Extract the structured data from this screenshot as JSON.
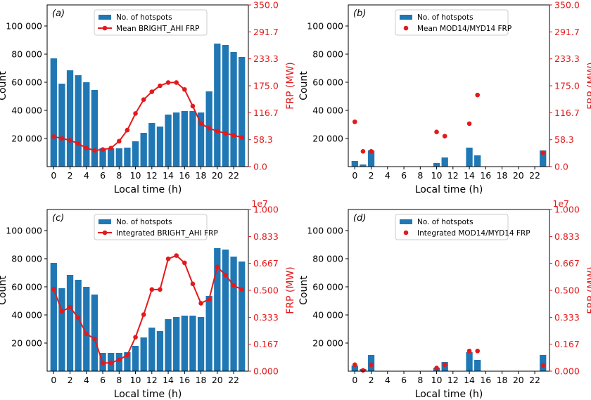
{
  "style": {
    "bar_color": "#1f77b4",
    "line_color": "#e31a1c",
    "axis_color": "#000000",
    "right_axis_color": "#e31a1c"
  },
  "chart_data": [
    {
      "id": "a",
      "panel_label": "(a)",
      "type": "bar",
      "series_types": [
        "bar",
        "line"
      ],
      "x": [
        0,
        1,
        2,
        3,
        4,
        5,
        6,
        7,
        8,
        9,
        10,
        11,
        12,
        13,
        14,
        15,
        16,
        17,
        18,
        19,
        20,
        21,
        22,
        23
      ],
      "xlabel": "Local time (h)",
      "xticks": [
        0,
        2,
        4,
        6,
        8,
        10,
        12,
        14,
        16,
        18,
        20,
        22
      ],
      "ylabel": "Count",
      "ylim": [
        0,
        115000
      ],
      "yticks": [
        20000,
        40000,
        60000,
        80000,
        100000
      ],
      "ytick_labels": [
        "20 000",
        "40 000",
        "60 000",
        "80 000",
        "100 000"
      ],
      "y2label": "FRP (MW)",
      "y2lim": [
        0,
        350
      ],
      "y2ticks": [
        0,
        58.3,
        116.7,
        175,
        233.3,
        291.7,
        350
      ],
      "y2tick_labels": [
        "0.0",
        "58.3",
        "116.7",
        "175.0",
        "233.3",
        "291.7",
        "350.0"
      ],
      "y2_offset_text": "",
      "series": [
        {
          "name": "No. of hotspots",
          "type": "bar",
          "axis": "left",
          "values": [
            77000,
            59000,
            68500,
            65000,
            60000,
            54500,
            13000,
            13000,
            13000,
            13500,
            18000,
            24000,
            31000,
            28500,
            37000,
            38500,
            39500,
            39500,
            38500,
            53500,
            87500,
            86500,
            81500,
            78000
          ]
        },
        {
          "name": "Mean BRIGHT_AHI FRP",
          "type": "line",
          "axis": "right",
          "values": [
            65,
            61,
            57,
            50,
            40,
            35,
            37,
            40,
            55,
            79,
            115,
            145,
            162,
            175,
            182,
            182,
            167,
            131,
            93,
            83,
            77,
            72,
            68,
            63
          ]
        }
      ],
      "legend": "top-center"
    },
    {
      "id": "b",
      "panel_label": "(b)",
      "type": "bar",
      "series_types": [
        "bar",
        "scatter"
      ],
      "x": [
        0,
        1,
        2,
        3,
        4,
        5,
        6,
        7,
        8,
        9,
        10,
        11,
        12,
        13,
        14,
        15,
        16,
        17,
        18,
        19,
        20,
        21,
        22,
        23
      ],
      "xlabel": "Local time (h)",
      "xticks": [
        0,
        2,
        4,
        6,
        8,
        10,
        12,
        14,
        16,
        18,
        20,
        22
      ],
      "ylabel": "Count",
      "ylim": [
        0,
        115000
      ],
      "yticks": [
        20000,
        40000,
        60000,
        80000,
        100000
      ],
      "ytick_labels": [
        "20 000",
        "40 000",
        "60 000",
        "80 000",
        "100 000"
      ],
      "y2label": "FRP (MW)",
      "y2lim": [
        0,
        350
      ],
      "y2ticks": [
        0,
        58.3,
        116.7,
        175,
        233.3,
        291.7,
        350
      ],
      "y2tick_labels": [
        "0.0",
        "58.3",
        "116.7",
        "175.0",
        "233.3",
        "291.7",
        "350.0"
      ],
      "y2_offset_text": "",
      "series": [
        {
          "name": "No. of hotspots",
          "type": "bar",
          "axis": "left",
          "values": [
            4000,
            1500,
            11500,
            null,
            null,
            null,
            null,
            null,
            null,
            null,
            2500,
            6500,
            null,
            null,
            13500,
            8000,
            null,
            null,
            null,
            null,
            null,
            null,
            null,
            11500
          ]
        },
        {
          "name": "Mean MOD14/MYD14 FRP",
          "type": "scatter",
          "axis": "right",
          "values": [
            97,
            33,
            33,
            null,
            null,
            null,
            null,
            null,
            null,
            null,
            75,
            66,
            null,
            null,
            93,
            155,
            null,
            null,
            null,
            null,
            null,
            null,
            null,
            30
          ]
        }
      ],
      "legend": "top-center"
    },
    {
      "id": "c",
      "panel_label": "(c)",
      "type": "bar",
      "series_types": [
        "bar",
        "line"
      ],
      "x": [
        0,
        1,
        2,
        3,
        4,
        5,
        6,
        7,
        8,
        9,
        10,
        11,
        12,
        13,
        14,
        15,
        16,
        17,
        18,
        19,
        20,
        21,
        22,
        23
      ],
      "xlabel": "Local time (h)",
      "xticks": [
        0,
        2,
        4,
        6,
        8,
        10,
        12,
        14,
        16,
        18,
        20,
        22
      ],
      "ylabel": "Count",
      "ylim": [
        0,
        115000
      ],
      "yticks": [
        20000,
        40000,
        60000,
        80000,
        100000
      ],
      "ytick_labels": [
        "20 000",
        "40 000",
        "60 000",
        "80 000",
        "100 000"
      ],
      "y2label": "FRP (MW)",
      "y2lim": [
        0,
        10000000
      ],
      "y2ticks": [
        0,
        1670000,
        3330000,
        5000000,
        6670000,
        8330000,
        10000000
      ],
      "y2tick_labels": [
        "0.000",
        "0.167",
        "0.333",
        "0.500",
        "0.667",
        "0.833",
        "1.000"
      ],
      "y2_offset_text": "1e7",
      "series": [
        {
          "name": "No. of hotspots",
          "type": "bar",
          "axis": "left",
          "values": [
            77000,
            59000,
            68500,
            65000,
            60000,
            54500,
            13000,
            13000,
            13000,
            13500,
            18000,
            24000,
            31000,
            28500,
            37000,
            38500,
            39500,
            39500,
            38500,
            53500,
            87500,
            86500,
            81500,
            78000
          ]
        },
        {
          "name": "Integrated BRIGHT_AHI FRP",
          "type": "line",
          "axis": "right",
          "values": [
            5080000,
            3700000,
            3950000,
            3300000,
            2300000,
            2000000,
            500000,
            520000,
            700000,
            1000000,
            2100000,
            3500000,
            5050000,
            5050000,
            6950000,
            7150000,
            6700000,
            5400000,
            4200000,
            4450000,
            6450000,
            5950000,
            5300000,
            5050000
          ]
        }
      ],
      "legend": "top-center"
    },
    {
      "id": "d",
      "panel_label": "(d)",
      "type": "bar",
      "series_types": [
        "bar",
        "scatter"
      ],
      "x": [
        0,
        1,
        2,
        3,
        4,
        5,
        6,
        7,
        8,
        9,
        10,
        11,
        12,
        13,
        14,
        15,
        16,
        17,
        18,
        19,
        20,
        21,
        22,
        23
      ],
      "xlabel": "Local time (h)",
      "xticks": [
        0,
        2,
        4,
        6,
        8,
        10,
        12,
        14,
        16,
        18,
        20,
        22
      ],
      "ylabel": "Count",
      "ylim": [
        0,
        115000
      ],
      "yticks": [
        20000,
        40000,
        60000,
        80000,
        100000
      ],
      "ytick_labels": [
        "20 000",
        "40 000",
        "60 000",
        "80 000",
        "100 000"
      ],
      "y2label": "FRP (MW)",
      "y2lim": [
        0,
        10000000
      ],
      "y2ticks": [
        0,
        1670000,
        3330000,
        5000000,
        6670000,
        8330000,
        10000000
      ],
      "y2tick_labels": [
        "0.000",
        "0.167",
        "0.333",
        "0.500",
        "0.667",
        "0.833",
        "1.000"
      ],
      "y2_offset_text": "1e7",
      "series": [
        {
          "name": "No. of hotspots",
          "type": "bar",
          "axis": "left",
          "values": [
            4000,
            1500,
            11500,
            null,
            null,
            null,
            null,
            null,
            null,
            null,
            2500,
            6500,
            null,
            null,
            13500,
            8000,
            null,
            null,
            null,
            null,
            null,
            null,
            null,
            11500
          ]
        },
        {
          "name": "Integrated MOD14/MYD14 FRP",
          "type": "scatter",
          "axis": "right",
          "values": [
            400000,
            50000,
            400000,
            null,
            null,
            null,
            null,
            null,
            null,
            null,
            200000,
            400000,
            null,
            null,
            1250000,
            1250000,
            null,
            null,
            null,
            null,
            null,
            null,
            null,
            350000
          ]
        }
      ],
      "legend": "top-center"
    }
  ]
}
